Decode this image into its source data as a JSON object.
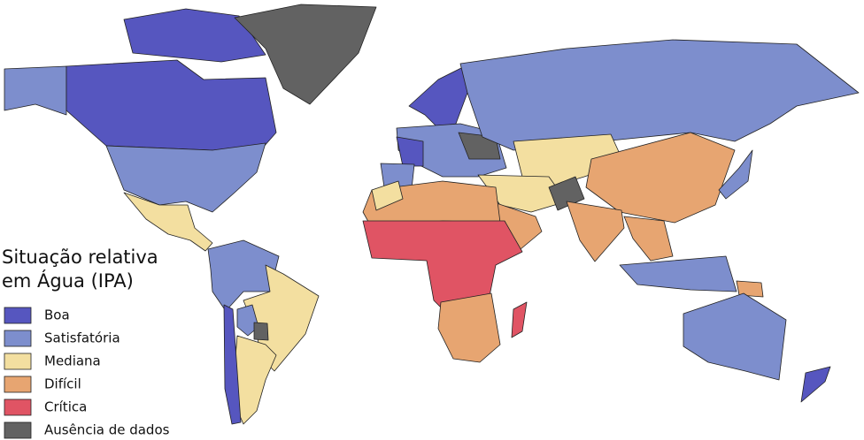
{
  "legend": {
    "title": [
      "Situação relativa",
      "em Água (IPA)"
    ],
    "items": [
      {
        "label": "Boa",
        "color": "#5656bf"
      },
      {
        "label": "Satisfatória",
        "color": "#7d8ecd"
      },
      {
        "label": "Mediana",
        "color": "#f3dfa0"
      },
      {
        "label": "Difícil",
        "color": "#e7a571"
      },
      {
        "label": "Crítica",
        "color": "#e05464"
      },
      {
        "label": "Ausência de dados",
        "color": "#626262"
      }
    ]
  }
}
